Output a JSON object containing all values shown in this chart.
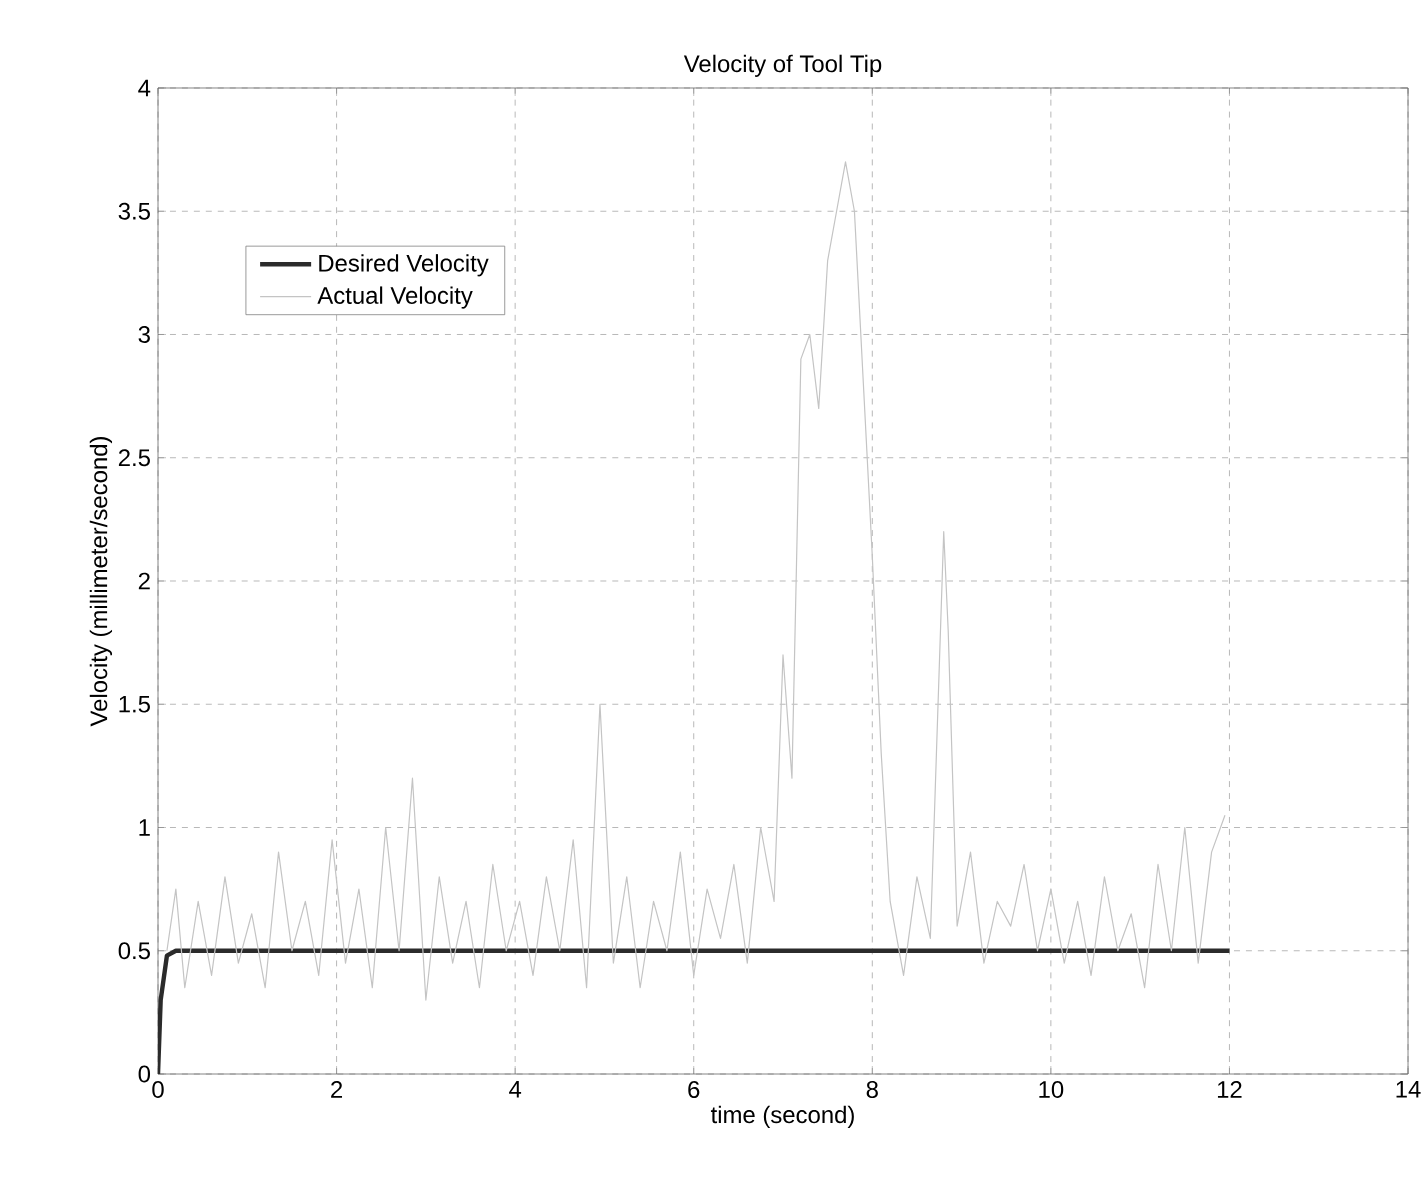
{
  "chart_data": {
    "type": "line",
    "title": "Velocity  of Tool Tip",
    "xlabel": "time (second)",
    "ylabel": "Velocity (millimeter/second)",
    "xlim": [
      0,
      14
    ],
    "ylim": [
      0,
      4
    ],
    "xticks": [
      0,
      2,
      4,
      6,
      8,
      10,
      12,
      14
    ],
    "yticks": [
      0,
      0.5,
      1,
      1.5,
      2,
      2.5,
      3,
      3.5,
      4
    ],
    "grid": true,
    "legend": "top left",
    "marker": "none",
    "line_style": "solid",
    "series": [
      {
        "name": "Desired Velocity",
        "color": "#2b2b2b",
        "x": [
          0,
          0.03,
          0.1,
          0.2,
          12
        ],
        "values": [
          0,
          0.3,
          0.48,
          0.5,
          0.5
        ]
      },
      {
        "name": "Actual Velocity",
        "color": "#c4c4c4",
        "x": [
          0.1,
          0.2,
          0.3,
          0.45,
          0.6,
          0.75,
          0.9,
          1.05,
          1.2,
          1.35,
          1.5,
          1.65,
          1.8,
          1.95,
          2.1,
          2.25,
          2.4,
          2.55,
          2.7,
          2.85,
          3.0,
          3.15,
          3.3,
          3.45,
          3.6,
          3.75,
          3.9,
          4.05,
          4.2,
          4.35,
          4.5,
          4.65,
          4.8,
          4.95,
          5.1,
          5.25,
          5.4,
          5.55,
          5.7,
          5.85,
          6.0,
          6.15,
          6.3,
          6.45,
          6.6,
          6.75,
          6.9,
          7.0,
          7.1,
          7.2,
          7.3,
          7.4,
          7.5,
          7.6,
          7.7,
          7.8,
          7.9,
          8.0,
          8.1,
          8.2,
          8.35,
          8.5,
          8.65,
          8.8,
          8.85,
          8.95,
          9.1,
          9.25,
          9.4,
          9.55,
          9.7,
          9.85,
          10.0,
          10.15,
          10.3,
          10.45,
          10.6,
          10.75,
          10.9,
          11.05,
          11.2,
          11.35,
          11.5,
          11.65,
          11.8,
          11.95
        ],
        "values": [
          0.5,
          0.75,
          0.35,
          0.7,
          0.4,
          0.8,
          0.45,
          0.65,
          0.35,
          0.9,
          0.5,
          0.7,
          0.4,
          0.95,
          0.45,
          0.75,
          0.35,
          1.0,
          0.5,
          1.2,
          0.3,
          0.8,
          0.45,
          0.7,
          0.35,
          0.85,
          0.5,
          0.7,
          0.4,
          0.8,
          0.5,
          0.95,
          0.35,
          1.5,
          0.45,
          0.8,
          0.35,
          0.7,
          0.5,
          0.9,
          0.4,
          0.75,
          0.55,
          0.85,
          0.45,
          1.0,
          0.7,
          1.7,
          1.2,
          2.9,
          3.0,
          2.7,
          3.3,
          3.5,
          3.7,
          3.5,
          2.8,
          2.1,
          1.3,
          0.7,
          0.4,
          0.8,
          0.55,
          2.2,
          1.8,
          0.6,
          0.9,
          0.45,
          0.7,
          0.6,
          0.85,
          0.5,
          0.75,
          0.45,
          0.7,
          0.4,
          0.8,
          0.5,
          0.65,
          0.35,
          0.85,
          0.5,
          1.0,
          0.45,
          0.9,
          1.05
        ]
      }
    ]
  }
}
